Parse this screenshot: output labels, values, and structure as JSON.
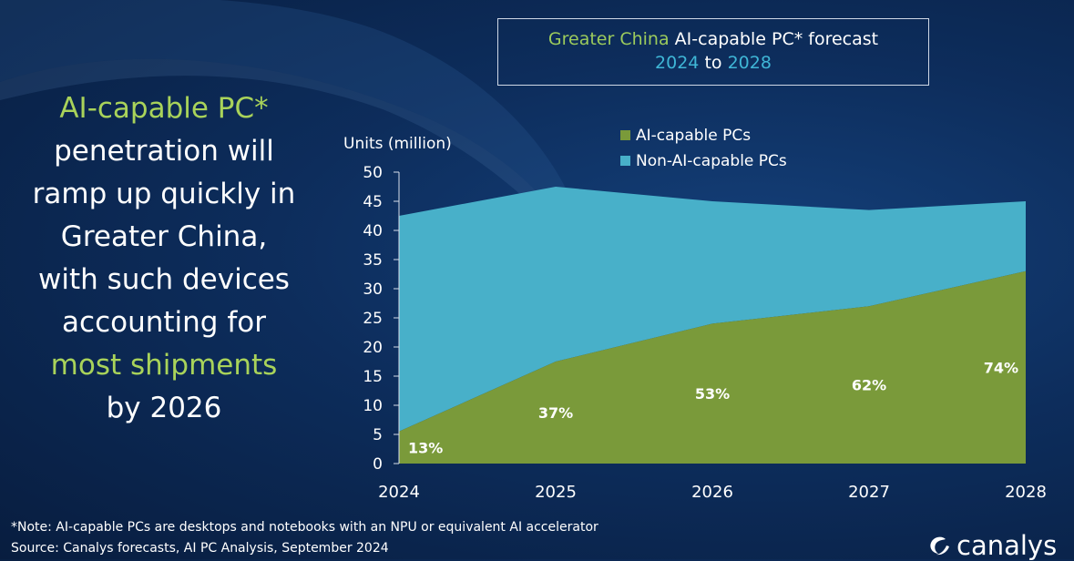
{
  "headline": {
    "line1": "AI-capable PC*",
    "line2": "penetration will",
    "line3": "ramp up quickly in",
    "line4": "Greater China,",
    "line5": "with such devices",
    "line6": "accounting for",
    "line7": "most shipments",
    "line8": "by 2026"
  },
  "title": {
    "part1": "Greater China",
    "part2": "AI-capable PC* forecast",
    "year_start": "2024",
    "connector": "to",
    "year_end": "2028"
  },
  "footnote": "*Note: AI-capable PCs are desktops and notebooks with an NPU or equivalent AI accelerator",
  "source": "Source: Canalys forecasts, AI PC Analysis, September 2024",
  "brand": "canalys",
  "colors": {
    "ai": "#7a9a3a",
    "non_ai": "#48b0c9",
    "accent_green": "#a9d35a"
  },
  "chart_data": {
    "type": "area",
    "stacked": true,
    "ylabel": "Units (million)",
    "categories": [
      "2024",
      "2025",
      "2026",
      "2027",
      "2028"
    ],
    "y_ticks": [
      "0",
      "5",
      "10",
      "15",
      "20",
      "25",
      "30",
      "35",
      "40",
      "45",
      "50"
    ],
    "ylim": [
      0,
      50
    ],
    "legend_position": "top",
    "series": [
      {
        "name": "AI-capable PCs",
        "values": [
          5.5,
          17.5,
          24,
          27,
          33
        ]
      },
      {
        "name": "Non-AI-capable  PCs",
        "values": [
          37,
          30,
          21,
          16.5,
          12
        ]
      }
    ],
    "data_labels": [
      "13%",
      "37%",
      "53%",
      "62%",
      "74%"
    ]
  }
}
